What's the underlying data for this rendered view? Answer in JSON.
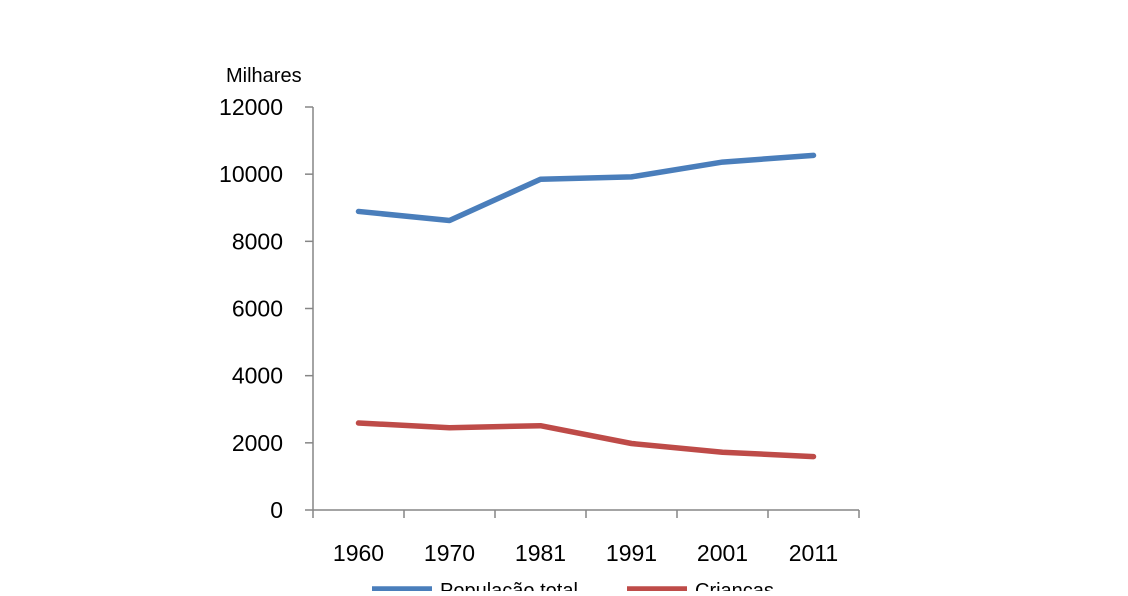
{
  "chart_data": {
    "type": "line",
    "title": "",
    "xlabel": "",
    "ylabel": "Milhares",
    "x": [
      "1960",
      "1970",
      "1981",
      "1991",
      "2001",
      "2011"
    ],
    "ylim": [
      0,
      12000
    ],
    "yticks": [
      0,
      2000,
      4000,
      6000,
      8000,
      10000,
      12000
    ],
    "grid": false,
    "legend_position": "bottom",
    "series": [
      {
        "name": "População total",
        "color": "#4A7EBB",
        "values": [
          8890,
          8620,
          9850,
          9920,
          10360,
          10560
        ]
      },
      {
        "name": "Crianças",
        "color": "#BE4B48",
        "values": [
          2590,
          2450,
          2510,
          1980,
          1720,
          1590
        ]
      }
    ]
  }
}
